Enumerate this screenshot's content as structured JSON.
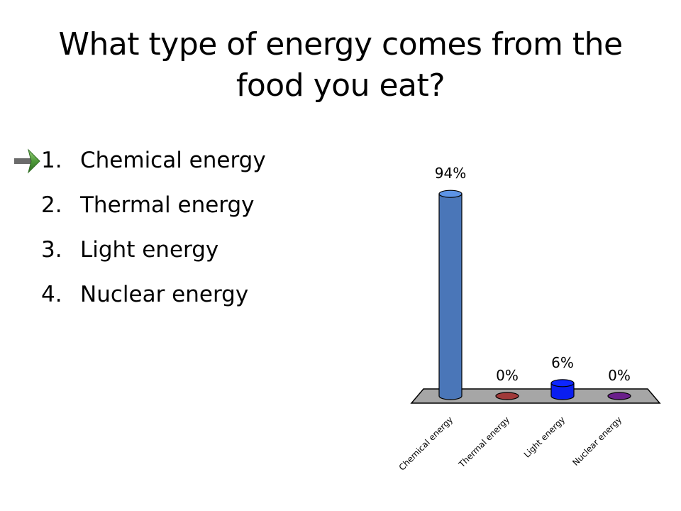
{
  "slide": {
    "title_line1": "What type of energy comes from the",
    "title_line2": "food you eat?"
  },
  "options": [
    {
      "number": "1.",
      "label": "Chemical energy"
    },
    {
      "number": "2.",
      "label": "Thermal energy"
    },
    {
      "number": "3.",
      "label": "Light energy"
    },
    {
      "number": "4.",
      "label": "Nuclear energy"
    }
  ],
  "correct_indicator": {
    "icon": "right-arrow-icon",
    "color": "#4f9a3a",
    "option_index": 0
  },
  "chart_data": {
    "type": "bar",
    "categories": [
      "Chemical energy",
      "Thermal energy",
      "Light energy",
      "Nuclear energy"
    ],
    "values": [
      94,
      0,
      6,
      0
    ],
    "data_labels": [
      "94%",
      "0%",
      "6%",
      "0%"
    ],
    "ylim": [
      0,
      100
    ],
    "colors": [
      "#4a76b8",
      "#a03a3a",
      "#0a1ef0",
      "#6a1f8a"
    ],
    "floor_color": "#a6a6a6",
    "grid": false,
    "legend": "none"
  }
}
